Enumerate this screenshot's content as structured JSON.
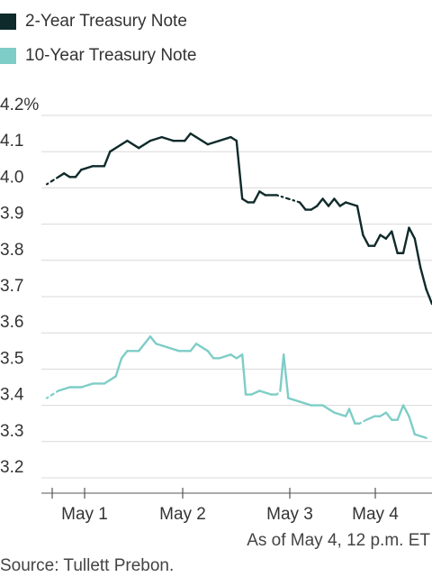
{
  "chart_data": {
    "type": "line",
    "title": "",
    "xlabel": "",
    "ylabel": "",
    "ylim": [
      3.2,
      4.2
    ],
    "y_ticks": [
      "4.2%",
      "4.1",
      "4.0",
      "3.9",
      "3.8",
      "3.7",
      "3.6",
      "3.5",
      "3.4",
      "3.3",
      "3.2"
    ],
    "x_ticks": [
      "May 1",
      "May 2",
      "May 3",
      "May 4"
    ],
    "grid": true,
    "legend_position": "top-left",
    "series": [
      {
        "name": "2-Year Treasury Note",
        "color": "#0f2a2a",
        "values": [
          {
            "x": 0.0,
            "y": 4.01,
            "gap": true
          },
          {
            "x": 0.5,
            "y": 4.02,
            "gap": true
          },
          {
            "x": 1.0,
            "y": 4.03
          },
          {
            "x": 1.5,
            "y": 4.04
          },
          {
            "x": 2.0,
            "y": 4.03
          },
          {
            "x": 2.5,
            "y": 4.03
          },
          {
            "x": 3.0,
            "y": 4.05
          },
          {
            "x": 4.0,
            "y": 4.06
          },
          {
            "x": 5.0,
            "y": 4.06
          },
          {
            "x": 5.5,
            "y": 4.1
          },
          {
            "x": 6.5,
            "y": 4.12
          },
          {
            "x": 7.0,
            "y": 4.13
          },
          {
            "x": 8.0,
            "y": 4.11
          },
          {
            "x": 9.0,
            "y": 4.13
          },
          {
            "x": 10.0,
            "y": 4.14
          },
          {
            "x": 11.0,
            "y": 4.13
          },
          {
            "x": 12.0,
            "y": 4.13
          },
          {
            "x": 12.5,
            "y": 4.15
          },
          {
            "x": 13.0,
            "y": 4.14
          },
          {
            "x": 13.5,
            "y": 4.13
          },
          {
            "x": 14.0,
            "y": 4.12
          },
          {
            "x": 15.0,
            "y": 4.13
          },
          {
            "x": 16.0,
            "y": 4.14
          },
          {
            "x": 16.5,
            "y": 4.13
          },
          {
            "x": 17.0,
            "y": 3.97
          },
          {
            "x": 17.5,
            "y": 3.96
          },
          {
            "x": 18.0,
            "y": 3.96
          },
          {
            "x": 18.5,
            "y": 3.99
          },
          {
            "x": 19.0,
            "y": 3.98
          },
          {
            "x": 20.0,
            "y": 3.98,
            "gap": true
          },
          {
            "x": 21.0,
            "y": 3.97,
            "gap": true
          },
          {
            "x": 22.0,
            "y": 3.96
          },
          {
            "x": 22.5,
            "y": 3.94
          },
          {
            "x": 23.0,
            "y": 3.94
          },
          {
            "x": 23.5,
            "y": 3.95
          },
          {
            "x": 24.0,
            "y": 3.97
          },
          {
            "x": 24.5,
            "y": 3.95
          },
          {
            "x": 25.0,
            "y": 3.97
          },
          {
            "x": 25.5,
            "y": 3.95
          },
          {
            "x": 26.0,
            "y": 3.96
          },
          {
            "x": 27.0,
            "y": 3.95
          },
          {
            "x": 27.5,
            "y": 3.87
          },
          {
            "x": 28.0,
            "y": 3.84
          },
          {
            "x": 28.5,
            "y": 3.84
          },
          {
            "x": 29.0,
            "y": 3.87
          },
          {
            "x": 29.5,
            "y": 3.86
          },
          {
            "x": 30.0,
            "y": 3.88
          },
          {
            "x": 30.5,
            "y": 3.82
          },
          {
            "x": 31.0,
            "y": 3.82
          },
          {
            "x": 31.5,
            "y": 3.89
          },
          {
            "x": 32.0,
            "y": 3.86
          },
          {
            "x": 32.5,
            "y": 3.78
          },
          {
            "x": 33.0,
            "y": 3.72
          },
          {
            "x": 33.5,
            "y": 3.68
          }
        ]
      },
      {
        "name": "10-Year Treasury Note",
        "color": "#7ecdc7",
        "values": [
          {
            "x": 0.0,
            "y": 3.42,
            "gap": true
          },
          {
            "x": 0.5,
            "y": 3.43,
            "gap": true
          },
          {
            "x": 1.0,
            "y": 3.44
          },
          {
            "x": 2.0,
            "y": 3.45
          },
          {
            "x": 3.0,
            "y": 3.45
          },
          {
            "x": 4.0,
            "y": 3.46
          },
          {
            "x": 5.0,
            "y": 3.46
          },
          {
            "x": 6.0,
            "y": 3.48
          },
          {
            "x": 6.5,
            "y": 3.53
          },
          {
            "x": 7.0,
            "y": 3.55
          },
          {
            "x": 8.0,
            "y": 3.55
          },
          {
            "x": 9.0,
            "y": 3.59
          },
          {
            "x": 9.5,
            "y": 3.57
          },
          {
            "x": 10.5,
            "y": 3.56
          },
          {
            "x": 11.5,
            "y": 3.55
          },
          {
            "x": 12.5,
            "y": 3.55
          },
          {
            "x": 13.0,
            "y": 3.57
          },
          {
            "x": 14.0,
            "y": 3.55
          },
          {
            "x": 14.5,
            "y": 3.53
          },
          {
            "x": 15.0,
            "y": 3.53
          },
          {
            "x": 16.0,
            "y": 3.54
          },
          {
            "x": 16.5,
            "y": 3.53
          },
          {
            "x": 17.0,
            "y": 3.54
          },
          {
            "x": 17.3,
            "y": 3.43
          },
          {
            "x": 17.8,
            "y": 3.43
          },
          {
            "x": 18.5,
            "y": 3.44
          },
          {
            "x": 19.5,
            "y": 3.43
          },
          {
            "x": 20.0,
            "y": 3.43,
            "gap": true
          },
          {
            "x": 20.3,
            "y": 3.44
          },
          {
            "x": 20.6,
            "y": 3.54
          },
          {
            "x": 21.0,
            "y": 3.42
          },
          {
            "x": 22.0,
            "y": 3.41
          },
          {
            "x": 23.0,
            "y": 3.4
          },
          {
            "x": 24.0,
            "y": 3.4
          },
          {
            "x": 24.5,
            "y": 3.39
          },
          {
            "x": 25.0,
            "y": 3.38
          },
          {
            "x": 26.0,
            "y": 3.37
          },
          {
            "x": 26.3,
            "y": 3.39
          },
          {
            "x": 26.8,
            "y": 3.35
          },
          {
            "x": 27.2,
            "y": 3.35,
            "gap": true
          },
          {
            "x": 27.8,
            "y": 3.36
          },
          {
            "x": 28.5,
            "y": 3.37
          },
          {
            "x": 29.0,
            "y": 3.37
          },
          {
            "x": 29.5,
            "y": 3.38
          },
          {
            "x": 30.0,
            "y": 3.36
          },
          {
            "x": 30.5,
            "y": 3.36
          },
          {
            "x": 31.0,
            "y": 3.4
          },
          {
            "x": 31.5,
            "y": 3.37
          },
          {
            "x": 32.0,
            "y": 3.32
          },
          {
            "x": 33.0,
            "y": 3.31
          }
        ]
      }
    ]
  },
  "note": "As of May 4, 12 p.m. ET",
  "source": "Source: Tullett Prebon."
}
